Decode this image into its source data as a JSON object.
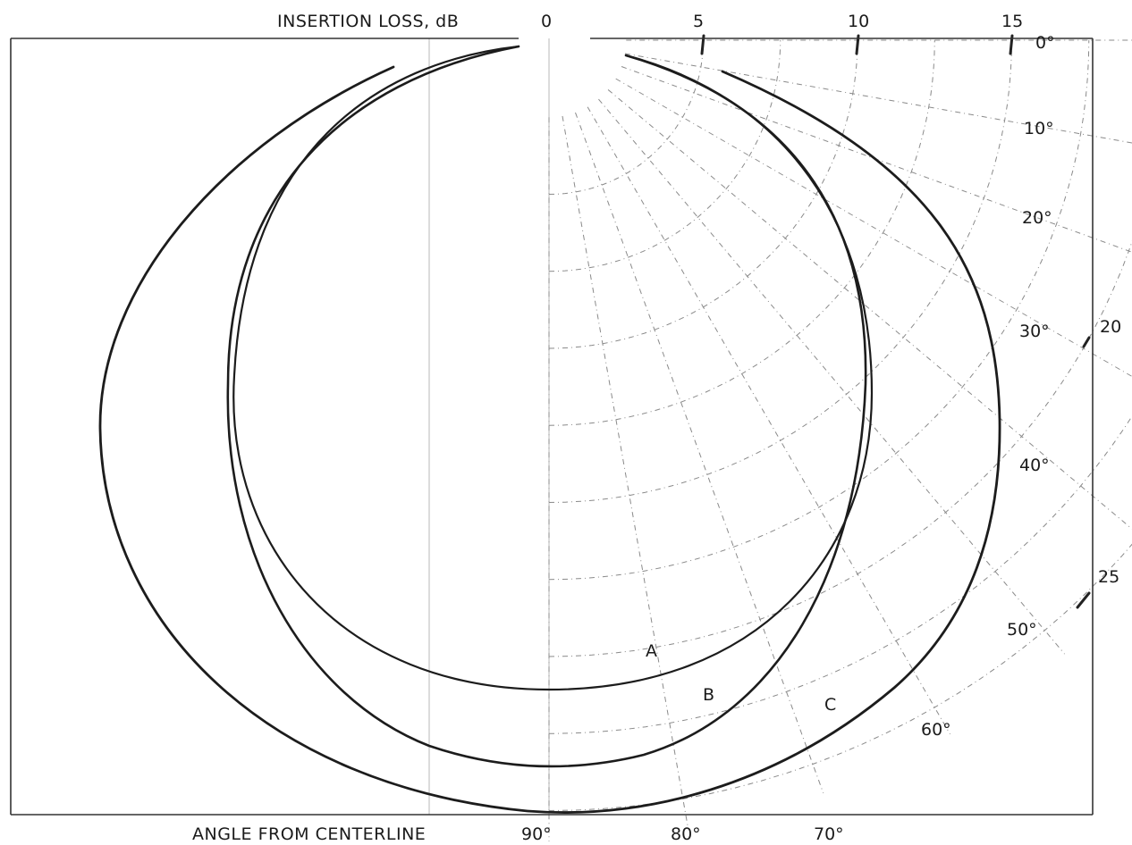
{
  "chart_data": {
    "type": "polar-line",
    "title": "",
    "top_axis": {
      "label": "INSERTION LOSS, dB",
      "ticks": [
        "0",
        "5",
        "10",
        "15"
      ]
    },
    "right_axis_ticks": [
      "20",
      "25"
    ],
    "bottom_axis": {
      "label": "ANGLE FROM CENTERLINE",
      "ticks": [
        "90°",
        "80°",
        "70°"
      ]
    },
    "angle_ticks": [
      "0°",
      "10°",
      "20°",
      "30°",
      "40°",
      "50°",
      "60°"
    ],
    "series": [
      {
        "name": "A",
        "x_unit": "angle from centerline, degrees",
        "y_unit": "insertion loss, dB",
        "points": [
          [
            0,
            0
          ],
          [
            30,
            8
          ],
          [
            50,
            13
          ],
          [
            70,
            18
          ],
          [
            90,
            20
          ]
        ]
      },
      {
        "name": "B",
        "x_unit": "angle from centerline, degrees",
        "y_unit": "insertion loss, dB",
        "points": [
          [
            0,
            0
          ],
          [
            30,
            9
          ],
          [
            50,
            15
          ],
          [
            70,
            21
          ],
          [
            90,
            23
          ]
        ]
      },
      {
        "name": "C",
        "x_unit": "angle from centerline, degrees",
        "y_unit": "insertion loss, dB",
        "points": [
          [
            0,
            5
          ],
          [
            30,
            13
          ],
          [
            50,
            18
          ],
          [
            70,
            22
          ],
          [
            90,
            24
          ]
        ]
      }
    ],
    "grid": true
  }
}
